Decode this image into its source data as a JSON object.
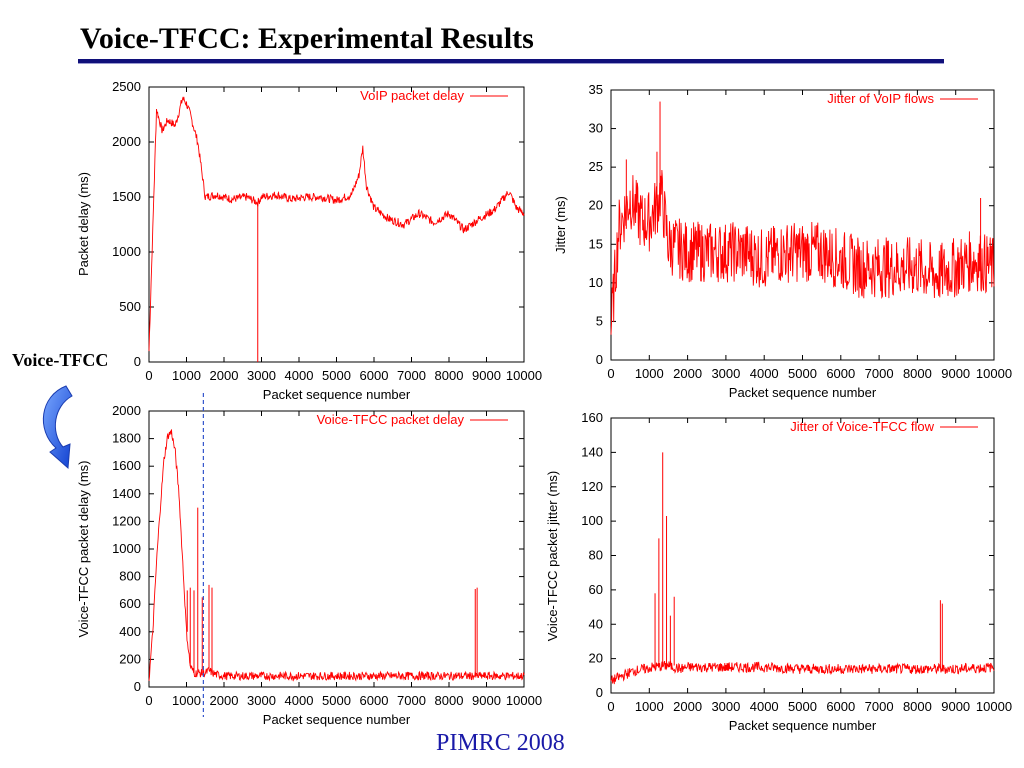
{
  "slide": {
    "title": "Voice-TFCC: Experimental Results",
    "side_label": "Voice-TFCC",
    "footer": "PIMRC 2008",
    "colors": {
      "series": "#ff0000",
      "title_rule": "#10107a",
      "footer": "#1a1aa8",
      "marker_line": "#3355cc"
    },
    "icons": [
      "curved-arrow-icon"
    ]
  },
  "chart_data": [
    {
      "type": "line",
      "xlabel": "Packet sequence number",
      "ylabel": "Packet delay (ms)",
      "xlim": [
        0,
        10000
      ],
      "ylim": [
        0,
        2500
      ],
      "xticks": [
        0,
        1000,
        2000,
        3000,
        4000,
        5000,
        6000,
        7000,
        8000,
        9000,
        10000
      ],
      "yticks": [
        0,
        500,
        1000,
        1500,
        2000,
        2500
      ],
      "legend_position": "top-right",
      "grid": false,
      "series": [
        {
          "name": "VoIP packet delay",
          "x": [
            0,
            200,
            350,
            500,
            700,
            900,
            1000,
            1100,
            1300,
            1500,
            1800,
            2200,
            2600,
            2900,
            3000,
            3400,
            3800,
            4200,
            4600,
            5000,
            5400,
            5600,
            5700,
            5800,
            6000,
            6400,
            6800,
            7200,
            7600,
            8000,
            8400,
            8800,
            9200,
            9600,
            9800,
            10000
          ],
          "y": [
            100,
            2300,
            2100,
            2200,
            2150,
            2400,
            2350,
            2250,
            2000,
            1500,
            1520,
            1480,
            1500,
            1450,
            1500,
            1520,
            1480,
            1500,
            1500,
            1470,
            1520,
            1700,
            1950,
            1600,
            1400,
            1300,
            1250,
            1350,
            1270,
            1350,
            1200,
            1300,
            1380,
            1550,
            1400,
            1350
          ],
          "spikes": [
            {
              "x": 2900,
              "y": 0
            }
          ]
        }
      ]
    },
    {
      "type": "line",
      "xlabel": "Packet sequence number",
      "ylabel": "Jitter (ms)",
      "xlim": [
        0,
        10000
      ],
      "ylim": [
        0,
        35
      ],
      "xticks": [
        0,
        1000,
        2000,
        3000,
        4000,
        5000,
        6000,
        7000,
        8000,
        9000,
        10000
      ],
      "yticks": [
        0,
        5,
        10,
        15,
        20,
        25,
        30,
        35
      ],
      "legend_position": "top-right",
      "grid": false,
      "series": [
        {
          "name": "Jitter of VoIP flows",
          "x": [
            0,
            200,
            500,
            800,
            1000,
            1200,
            1300,
            1500,
            2000,
            2500,
            3000,
            3500,
            4000,
            4500,
            5000,
            5500,
            6000,
            6500,
            7000,
            7500,
            8000,
            8500,
            9000,
            9500,
            10000
          ],
          "y": [
            4,
            17,
            21,
            18,
            18,
            20,
            22,
            15,
            14,
            14,
            14,
            14,
            13,
            14,
            14,
            14,
            13,
            12,
            12,
            12,
            12,
            11,
            12,
            13,
            12
          ],
          "spread": 4,
          "spikes": [
            {
              "x": 1280,
              "y": 33.5
            },
            {
              "x": 1200,
              "y": 27
            },
            {
              "x": 400,
              "y": 26
            },
            {
              "x": 9650,
              "y": 21
            }
          ]
        }
      ]
    },
    {
      "type": "line",
      "xlabel": "Packet sequence number",
      "ylabel": "Voice-TFCC packet delay (ms)",
      "xlim": [
        0,
        10000
      ],
      "ylim": [
        0,
        2000
      ],
      "xticks": [
        0,
        1000,
        2000,
        3000,
        4000,
        5000,
        6000,
        7000,
        8000,
        9000,
        10000
      ],
      "yticks": [
        0,
        200,
        400,
        600,
        800,
        1000,
        1200,
        1400,
        1600,
        1800,
        2000
      ],
      "legend_position": "top-right",
      "grid": false,
      "marker_x": 1450,
      "series": [
        {
          "name": "Voice-TFCC packet delay",
          "x": [
            0,
            100,
            200,
            300,
            400,
            500,
            600,
            700,
            800,
            900,
            1000,
            1100,
            1200,
            1300,
            1400,
            1500,
            1600,
            1700,
            1800,
            2000,
            3000,
            4000,
            5000,
            6000,
            7000,
            8000,
            8600,
            8700,
            8800,
            9000,
            10000
          ],
          "y": [
            50,
            400,
            900,
            1300,
            1650,
            1820,
            1850,
            1700,
            1400,
            900,
            400,
            150,
            100,
            100,
            100,
            100,
            120,
            100,
            90,
            80,
            80,
            80,
            80,
            80,
            80,
            80,
            80,
            80,
            80,
            80,
            80
          ],
          "spikes": [
            {
              "x": 1020,
              "y": 700
            },
            {
              "x": 1100,
              "y": 720
            },
            {
              "x": 1200,
              "y": 700
            },
            {
              "x": 1300,
              "y": 1300
            },
            {
              "x": 1420,
              "y": 650
            },
            {
              "x": 1600,
              "y": 740
            },
            {
              "x": 1680,
              "y": 720
            },
            {
              "x": 8700,
              "y": 710
            },
            {
              "x": 8750,
              "y": 720
            }
          ]
        }
      ]
    },
    {
      "type": "line",
      "xlabel": "Packet sequence number",
      "ylabel": "Voice-TFCC packet jitter (ms)",
      "xlim": [
        0,
        10000
      ],
      "ylim": [
        0,
        160
      ],
      "xticks": [
        0,
        1000,
        2000,
        3000,
        4000,
        5000,
        6000,
        7000,
        8000,
        9000,
        10000
      ],
      "yticks": [
        0,
        20,
        40,
        60,
        80,
        100,
        120,
        140,
        160
      ],
      "legend_position": "top-right",
      "grid": false,
      "series": [
        {
          "name": "Jitter of Voice-TFCC flow",
          "x": [
            0,
            300,
            600,
            900,
            1100,
            1500,
            1800,
            2000,
            3000,
            4000,
            5000,
            6000,
            7000,
            8000,
            9000,
            10000
          ],
          "y": [
            7,
            10,
            13,
            14,
            15,
            16,
            14,
            15,
            15,
            15,
            14,
            14,
            14,
            14,
            14,
            15
          ],
          "spread": 3,
          "spikes": [
            {
              "x": 1150,
              "y": 58
            },
            {
              "x": 1250,
              "y": 90
            },
            {
              "x": 1350,
              "y": 140
            },
            {
              "x": 1450,
              "y": 103
            },
            {
              "x": 1550,
              "y": 45
            },
            {
              "x": 1650,
              "y": 56
            },
            {
              "x": 8600,
              "y": 54
            },
            {
              "x": 8650,
              "y": 52
            }
          ]
        }
      ]
    }
  ]
}
